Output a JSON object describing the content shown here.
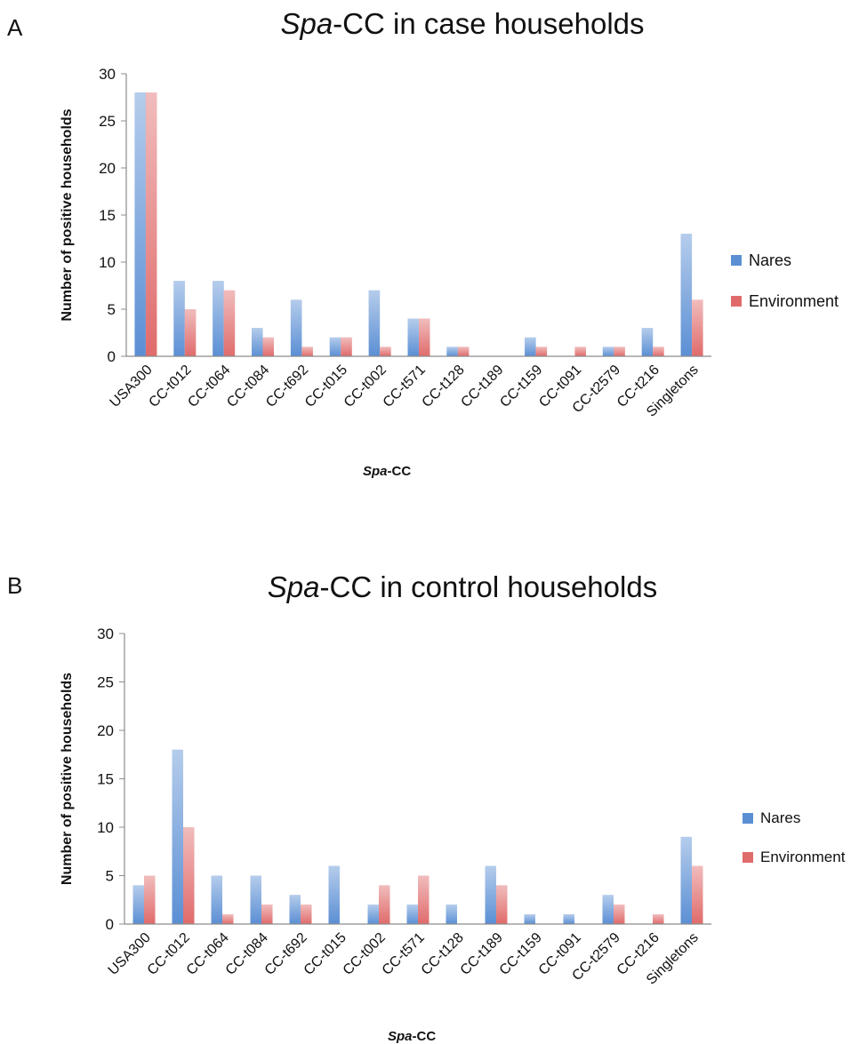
{
  "chart_data": [
    {
      "type": "bar",
      "panel": "A",
      "title_italic": "Spa",
      "title_rest": "-CC in case households",
      "xlabel_italic": "Spa",
      "xlabel_rest": "-CC",
      "ylabel": "Number of positive households",
      "ylim": [
        0,
        30
      ],
      "yticks": [
        0,
        5,
        10,
        15,
        20,
        25,
        30
      ],
      "categories": [
        "USA300",
        "CC-t012",
        "CC-t064",
        "CC-t084",
        "CC-t692",
        "CC-t015",
        "CC-t002",
        "CC-t571",
        "CC-t128",
        "CC-t189",
        "CC-t159",
        "CC-t091",
        "CC-t2579",
        "CC-t216",
        "Singletons"
      ],
      "series": [
        {
          "name": "Nares",
          "color": "#5b8fd4",
          "values": [
            28,
            8,
            8,
            3,
            6,
            2,
            7,
            4,
            1,
            0,
            2,
            0,
            1,
            3,
            13
          ]
        },
        {
          "name": "Environment",
          "color": "#e06b6b",
          "values": [
            28,
            5,
            7,
            2,
            1,
            2,
            1,
            4,
            1,
            0,
            1,
            1,
            1,
            1,
            6
          ]
        }
      ],
      "legend": "right"
    },
    {
      "type": "bar",
      "panel": "B",
      "title_italic": "Spa",
      "title_rest": "-CC in control households",
      "xlabel_italic": "Spa",
      "xlabel_rest": "-CC",
      "ylabel": "Number of positive households",
      "ylim": [
        0,
        30
      ],
      "yticks": [
        0,
        5,
        10,
        15,
        20,
        25,
        30
      ],
      "categories": [
        "USA300",
        "CC-t012",
        "CC-t064",
        "CC-t084",
        "CC-t692",
        "CC-t015",
        "CC-t002",
        "CC-t571",
        "CC-t128",
        "CC-t189",
        "CC-t159",
        "CC-t091",
        "CC-t2579",
        "CC-t216",
        "Singletons"
      ],
      "series": [
        {
          "name": "Nares",
          "color": "#5b8fd4",
          "values": [
            4,
            18,
            5,
            5,
            3,
            6,
            2,
            2,
            2,
            6,
            1,
            1,
            3,
            0,
            9
          ]
        },
        {
          "name": "Environment",
          "color": "#e06b6b",
          "values": [
            5,
            10,
            1,
            2,
            2,
            0,
            4,
            5,
            0,
            4,
            0,
            0,
            2,
            1,
            6
          ]
        }
      ],
      "legend": "right"
    }
  ]
}
